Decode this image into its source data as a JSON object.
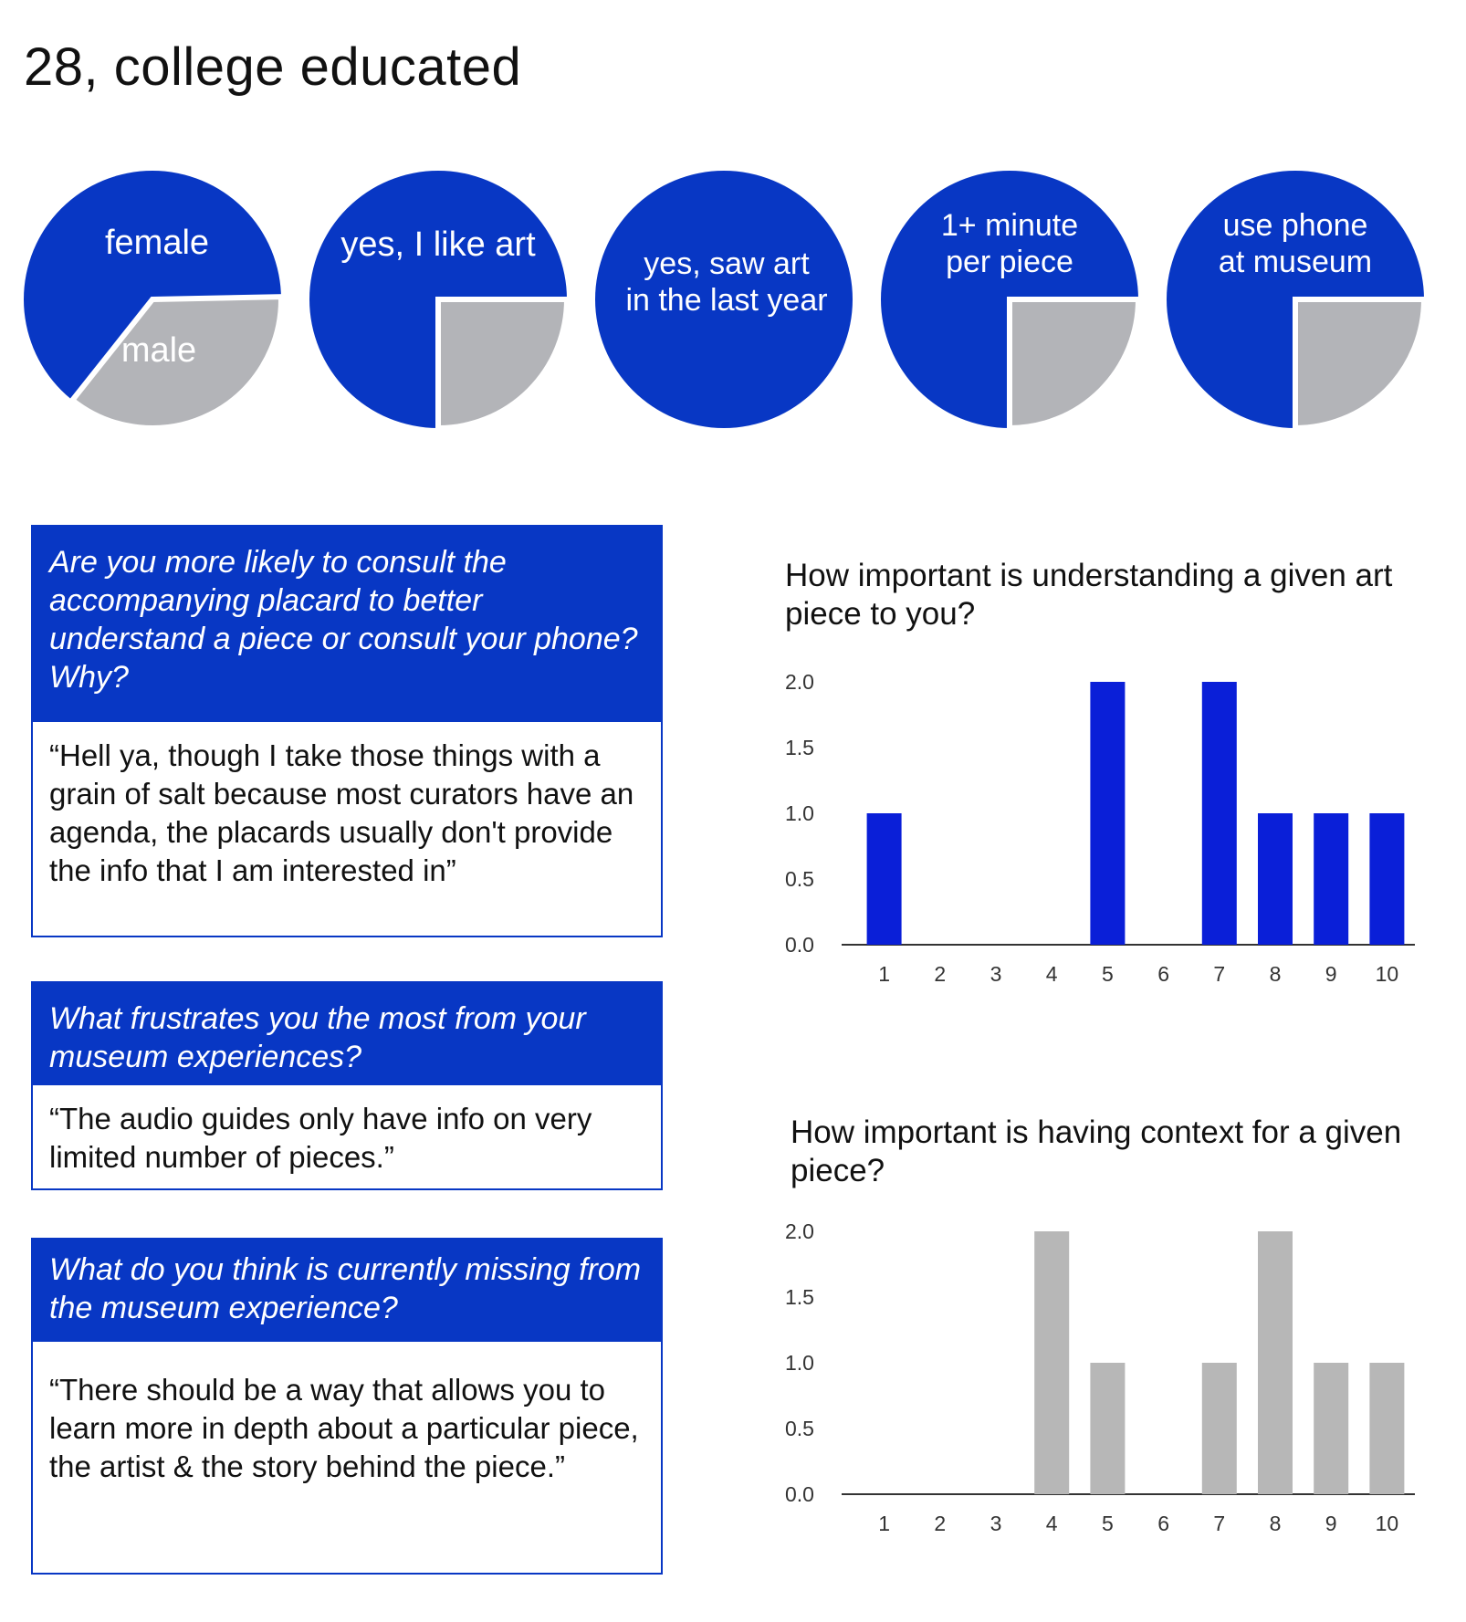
{
  "header": {
    "title": "28, college educated"
  },
  "pies": [
    {
      "labels": [
        "female",
        "male"
      ],
      "slices": [
        {
          "label": "female",
          "fraction": 0.64
        },
        {
          "label": "male",
          "fraction": 0.36
        }
      ]
    },
    {
      "labels": [
        "yes, I like art"
      ],
      "slices": [
        {
          "label": "yes, I like art",
          "fraction": 0.75
        },
        {
          "label": "",
          "fraction": 0.25
        }
      ]
    },
    {
      "labels": [
        "yes, saw art",
        "in the last year"
      ],
      "slices": [
        {
          "label": "yes, saw art in the last year",
          "fraction": 1.0
        }
      ]
    },
    {
      "labels": [
        "1+ minute",
        "per piece"
      ],
      "slices": [
        {
          "label": "1+ minute per piece",
          "fraction": 0.75
        },
        {
          "label": "",
          "fraction": 0.25
        }
      ]
    },
    {
      "labels": [
        "use phone",
        "at museum"
      ],
      "slices": [
        {
          "label": "use phone at museum",
          "fraction": 0.75
        },
        {
          "label": "",
          "fraction": 0.25
        }
      ]
    }
  ],
  "questions": [
    {
      "question": "Are you more likely to consult the accompanying placard to better understand a piece or consult your phone? Why?",
      "answer": "“Hell ya, though I take those things with a grain of salt because most curators have an agenda, the placards usually don't provide the info that I am interested in”"
    },
    {
      "question": "What frustrates you the most from your museum experiences?",
      "answer": "“The audio guides only have info on very limited number of pieces.”"
    },
    {
      "question": "What do you think is currently missing from the museum experience?",
      "answer": "“There should be a way that allows you to learn more in depth about a particular piece, the artist & the story behind the piece.”"
    }
  ],
  "colors": {
    "blue": "#0837c4",
    "bar_blue": "#0a1fd8",
    "gray": "#b3b4b8",
    "bar_gray": "#b7b7b7"
  },
  "chart_data": [
    {
      "type": "bar",
      "title": "How important is understanding a given art piece to you?",
      "categories": [
        "1",
        "2",
        "3",
        "4",
        "5",
        "6",
        "7",
        "8",
        "9",
        "10"
      ],
      "values": [
        1,
        0,
        0,
        0,
        2,
        0,
        2,
        1,
        1,
        1
      ],
      "ylim": [
        0,
        2
      ],
      "yticks": [
        "2.0",
        "1.5",
        "1.0",
        "0.5",
        "0.0"
      ],
      "color": "#0a1fd8"
    },
    {
      "type": "bar",
      "title": "How important is having context for a given piece?",
      "categories": [
        "1",
        "2",
        "3",
        "4",
        "5",
        "6",
        "7",
        "8",
        "9",
        "10"
      ],
      "values": [
        0,
        0,
        0,
        2,
        1,
        0,
        1,
        2,
        1,
        1
      ],
      "ylim": [
        0,
        2
      ],
      "yticks": [
        "2.0",
        "1.5",
        "1.0",
        "0.5",
        "0.0"
      ],
      "color": "#b7b7b7"
    }
  ]
}
